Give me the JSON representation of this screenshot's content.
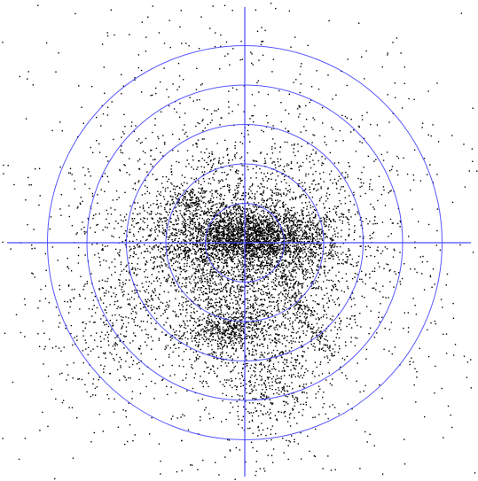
{
  "chart_data": {
    "type": "scatter",
    "title": "",
    "xlabel": "",
    "ylabel": "",
    "polar_grid": {
      "center": [
        0,
        0
      ],
      "ring_radii": [
        1,
        2,
        3,
        4,
        5
      ],
      "crosshair": true,
      "grid_color": "#3b3bff",
      "axis_color": "#4a4aff"
    },
    "axis_range": {
      "x": [
        -6.2,
        5.9
      ],
      "y": [
        -6.0,
        6.2
      ]
    },
    "point_color": "#000000",
    "series": [
      {
        "point_count": 9000,
        "clusters": [
          {
            "center": [
              0.15,
              0.15
            ],
            "sd": [
              1.0,
              0.38
            ],
            "weight": 0.26
          },
          {
            "center": [
              -0.1,
              -0.2
            ],
            "sd": [
              1.7,
              1.5
            ],
            "weight": 0.33
          },
          {
            "center": [
              -0.4,
              -0.9
            ],
            "sd": [
              1.1,
              1.3
            ],
            "weight": 0.09
          },
          {
            "center": [
              0.6,
              -3.5
            ],
            "sd": [
              0.55,
              0.85
            ],
            "weight": 0.045
          },
          {
            "center": [
              -0.4,
              -2.2
            ],
            "sd": [
              0.5,
              0.22
            ],
            "weight": 0.04
          },
          {
            "center": [
              -1.5,
              1.1
            ],
            "sd": [
              0.25,
              0.18
            ],
            "weight": 0.012
          },
          {
            "center": [
              -3.6,
              -1.9
            ],
            "sd": [
              0.7,
              1.2
            ],
            "weight": 0.03
          },
          {
            "center": [
              0.0,
              0.0
            ],
            "sd": [
              3.2,
              3.2
            ],
            "weight": 0.1
          },
          {
            "center": [
              0.0,
              0.0
            ],
            "sd": [
              6.0,
              6.0
            ],
            "weight": 0.05
          }
        ],
        "streak": {
          "from": [
            0.9,
            -0.8
          ],
          "to": [
            2.2,
            -2.9
          ],
          "width": 0.12,
          "weight": 0.02
        }
      }
    ]
  }
}
